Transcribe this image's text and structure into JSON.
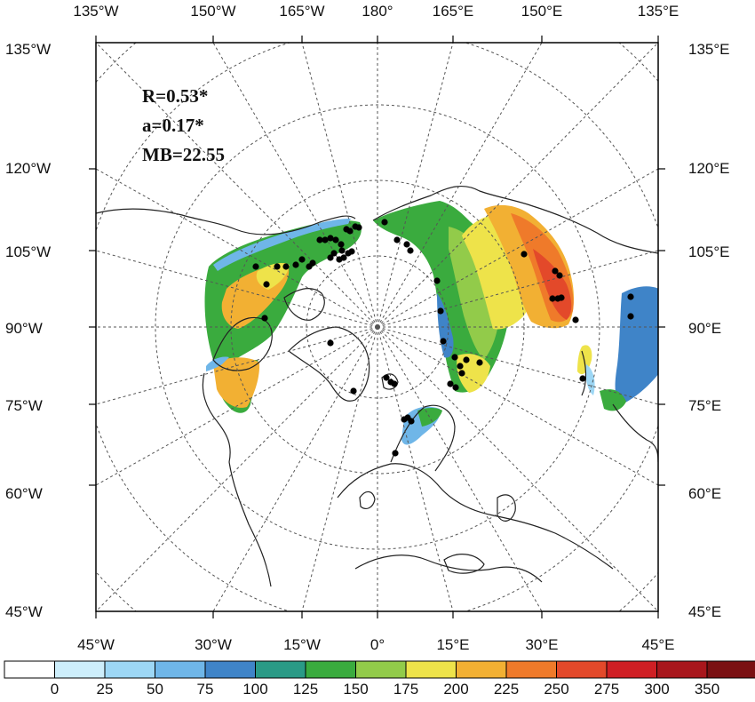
{
  "stats": {
    "r": "R=0.53*",
    "a": "a=0.17*",
    "mb": "MB=22.55"
  },
  "axes": {
    "top": [
      "135°W",
      "150°W",
      "165°W",
      "180°",
      "165°E",
      "150°E",
      "135°E"
    ],
    "bottom": [
      "45°W",
      "30°W",
      "15°W",
      "0°",
      "15°E",
      "30°E",
      "45°E"
    ],
    "left": [
      "135°W",
      "120°W",
      "105°W",
      "90°W",
      "75°W",
      "60°W",
      "45°W"
    ],
    "right": [
      "135°E",
      "120°E",
      "105°E",
      "90°E",
      "75°E",
      "60°E",
      "45°E"
    ]
  },
  "colorbar": {
    "ticks": [
      "0",
      "25",
      "50",
      "75",
      "100",
      "125",
      "150",
      "175",
      "200",
      "225",
      "250",
      "275",
      "300",
      "350"
    ],
    "colors": [
      "#ffffff",
      "#cdeefb",
      "#9dd7f5",
      "#6fb6e8",
      "#3f84c8",
      "#2a9a86",
      "#3aab3e",
      "#92cb4a",
      "#eee34a",
      "#f2b033",
      "#ef7a2a",
      "#e3492a",
      "#cf1f24",
      "#a8161c",
      "#7a1012"
    ]
  },
  "colors": {
    "frame": "#000000",
    "grid": "#555555",
    "coast": "#222222",
    "station": "#000000"
  }
}
